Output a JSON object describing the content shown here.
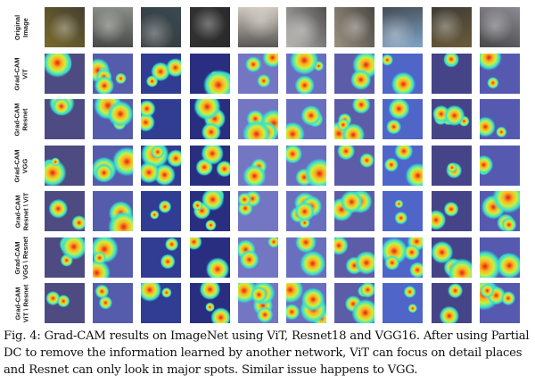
{
  "figure": {
    "rows": [
      {
        "label_line1": "Original",
        "label_line2": "Image",
        "kind": "original"
      },
      {
        "label_line1": "Grad-CAM",
        "label_line2": "ViT",
        "kind": "cam"
      },
      {
        "label_line1": "Grad-CAM",
        "label_line2": "Resnet",
        "kind": "cam"
      },
      {
        "label_line1": "Grad-CAM",
        "label_line2": "VGG",
        "kind": "cam"
      },
      {
        "label_line1": "Grad-CAM",
        "label_line2": "Resnet \\ ViT",
        "kind": "cam"
      },
      {
        "label_line1": "Grad-CAM",
        "label_line2": "VGG \\ Resnet",
        "kind": "cam"
      },
      {
        "label_line1": "Grad-CAM",
        "label_line2": "ViT \\ Resnet",
        "kind": "cam"
      }
    ],
    "column_count": 10,
    "original_image_colors": [
      "#7a6a2a",
      "#8a8f88",
      "#3a4a52",
      "#2a2a2a",
      "#cfc8bd",
      "#b9b6b2",
      "#9c9080",
      "#7fa3c8",
      "#6a5a3a",
      "#8c8a92"
    ],
    "heatmap_colors": [
      "#1a1aa8",
      "#2f7fff",
      "#38e0d0",
      "#c8f040",
      "#ffb020",
      "#e02010"
    ]
  },
  "caption": "Fig. 4: Grad-CAM results on ImageNet using ViT, Resnet18 and VGG16. After using Partial DC to remove the information learned by another network, ViT can focus on detail places and Resnet can only look in major spots. Similar issue happens to VGG."
}
